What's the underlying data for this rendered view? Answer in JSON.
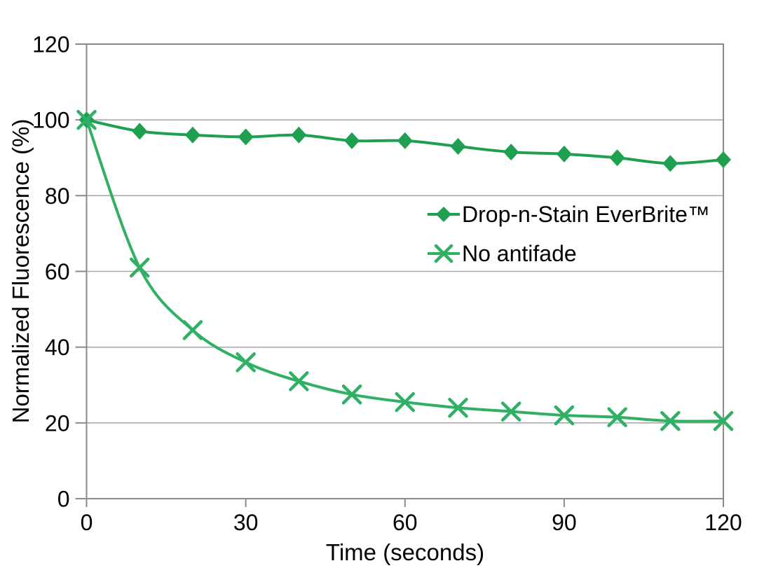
{
  "chart_data": {
    "type": "line",
    "title": "",
    "xlabel": "Time (seconds)",
    "ylabel": "Normalized Fluorescence (%)",
    "xlim": [
      0,
      120
    ],
    "ylim": [
      0,
      120
    ],
    "xticks": [
      0,
      30,
      60,
      90,
      120
    ],
    "yticks": [
      0,
      20,
      40,
      60,
      80,
      100,
      120
    ],
    "grid": "horizontal",
    "legend_position": "inside-right",
    "x": [
      0,
      10,
      20,
      30,
      40,
      50,
      60,
      70,
      80,
      90,
      100,
      110,
      120
    ],
    "series": [
      {
        "name": "Drop-n-Stain EverBrite™",
        "marker": "diamond",
        "color": "#1f9f50",
        "smooth": true,
        "values": [
          100,
          97,
          96,
          95.5,
          96,
          94.5,
          94.5,
          93,
          91.5,
          91,
          90,
          88.5,
          89.5
        ]
      },
      {
        "name": "No antifade",
        "marker": "x",
        "color": "#2fb064",
        "smooth": true,
        "values": [
          100,
          61,
          44.5,
          36,
          31,
          27.5,
          25.5,
          24,
          23,
          22,
          21.5,
          20.5,
          20.5
        ]
      }
    ],
    "colors": {
      "background": "#ffffff",
      "gridline": "#a9a9a9",
      "axis": "#8a8a8a",
      "tick_text": "#000000"
    }
  }
}
